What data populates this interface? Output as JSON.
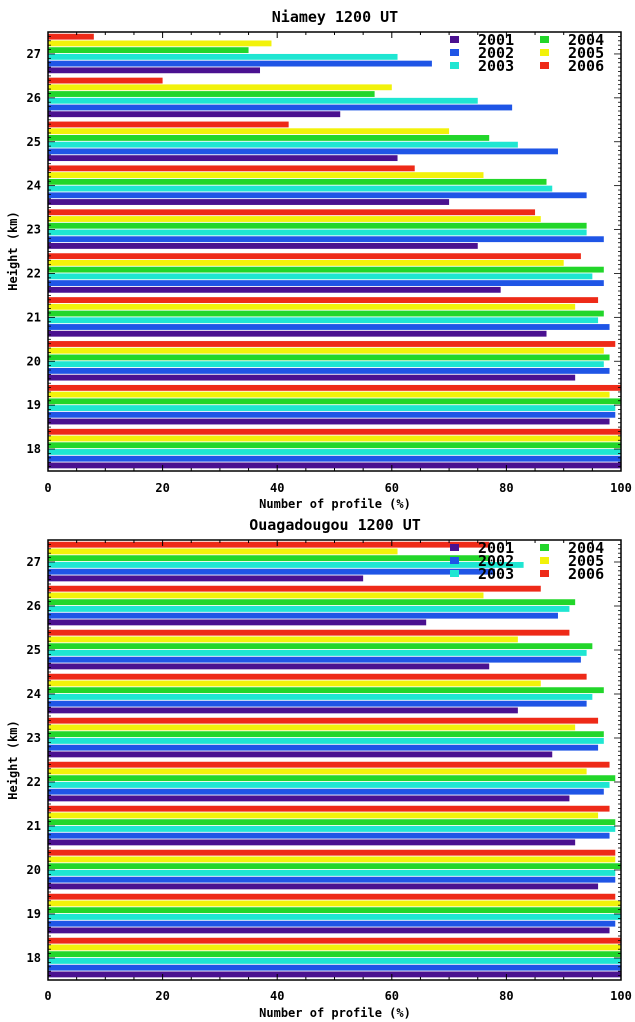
{
  "colors": {
    "2001": "#4a1190",
    "2002": "#1f55e6",
    "2003": "#1fe6d2",
    "2004": "#22d62a",
    "2005": "#f2f20a",
    "2006": "#ee2a18"
  },
  "chart_data": [
    {
      "type": "bar",
      "orientation": "horizontal",
      "title": "Niamey 1200 UT",
      "xlabel": "Number of profile (%)",
      "ylabel": "Height (km)",
      "xlim": [
        0,
        100
      ],
      "ylim": [
        17.5,
        27.5
      ],
      "x_ticks": [
        "0",
        "20",
        "40",
        "60",
        "80",
        "100"
      ],
      "y_ticks": [
        "18",
        "19",
        "20",
        "21",
        "22",
        "23",
        "24",
        "25",
        "26",
        "27"
      ],
      "legend": {
        "placement": "top-right",
        "entries": [
          "2001",
          "2004",
          "2002",
          "2005",
          "2003",
          "2006"
        ]
      },
      "grid": false,
      "heights": [
        27,
        26,
        25,
        24,
        23,
        22,
        21,
        20,
        19,
        18
      ],
      "series": [
        {
          "name": "2001",
          "values": [
            37,
            51,
            61,
            70,
            75,
            79,
            87,
            92,
            98,
            100
          ]
        },
        {
          "name": "2002",
          "values": [
            67,
            81,
            89,
            94,
            97,
            97,
            98,
            98,
            99,
            100
          ]
        },
        {
          "name": "2003",
          "values": [
            61,
            75,
            82,
            88,
            94,
            95,
            96,
            97,
            99,
            100
          ]
        },
        {
          "name": "2004",
          "values": [
            35,
            57,
            77,
            87,
            94,
            97,
            97,
            98,
            100,
            100
          ]
        },
        {
          "name": "2005",
          "values": [
            39,
            60,
            70,
            76,
            86,
            90,
            92,
            97,
            98,
            100
          ]
        },
        {
          "name": "2006",
          "values": [
            8,
            20,
            42,
            64,
            85,
            93,
            96,
            99,
            100,
            100
          ]
        }
      ]
    },
    {
      "type": "bar",
      "orientation": "horizontal",
      "title": "Ouagadougou 1200 UT",
      "xlabel": "Number of profile (%)",
      "ylabel": "Height (km)",
      "xlim": [
        0,
        100
      ],
      "ylim": [
        17.5,
        27.5
      ],
      "x_ticks": [
        "0",
        "20",
        "40",
        "60",
        "80",
        "100"
      ],
      "y_ticks": [
        "18",
        "19",
        "20",
        "21",
        "22",
        "23",
        "24",
        "25",
        "26",
        "27"
      ],
      "legend": {
        "placement": "top-right",
        "entries": [
          "2001",
          "2004",
          "2002",
          "2005",
          "2003",
          "2006"
        ]
      },
      "grid": false,
      "heights": [
        27,
        26,
        25,
        24,
        23,
        22,
        21,
        20,
        19,
        18
      ],
      "series": [
        {
          "name": "2001",
          "values": [
            55,
            66,
            77,
            82,
            88,
            91,
            92,
            96,
            98,
            100
          ]
        },
        {
          "name": "2002",
          "values": [
            78,
            89,
            93,
            94,
            96,
            97,
            98,
            99,
            99,
            100
          ]
        },
        {
          "name": "2003",
          "values": [
            83,
            91,
            94,
            95,
            97,
            98,
            99,
            99,
            100,
            100
          ]
        },
        {
          "name": "2004",
          "values": [
            77,
            92,
            95,
            97,
            97,
            99,
            99,
            100,
            100,
            100
          ]
        },
        {
          "name": "2005",
          "values": [
            61,
            76,
            82,
            86,
            92,
            94,
            96,
            99,
            100,
            100
          ]
        },
        {
          "name": "2006",
          "values": [
            77,
            86,
            91,
            94,
            96,
            98,
            98,
            99,
            99,
            100
          ]
        }
      ]
    }
  ]
}
